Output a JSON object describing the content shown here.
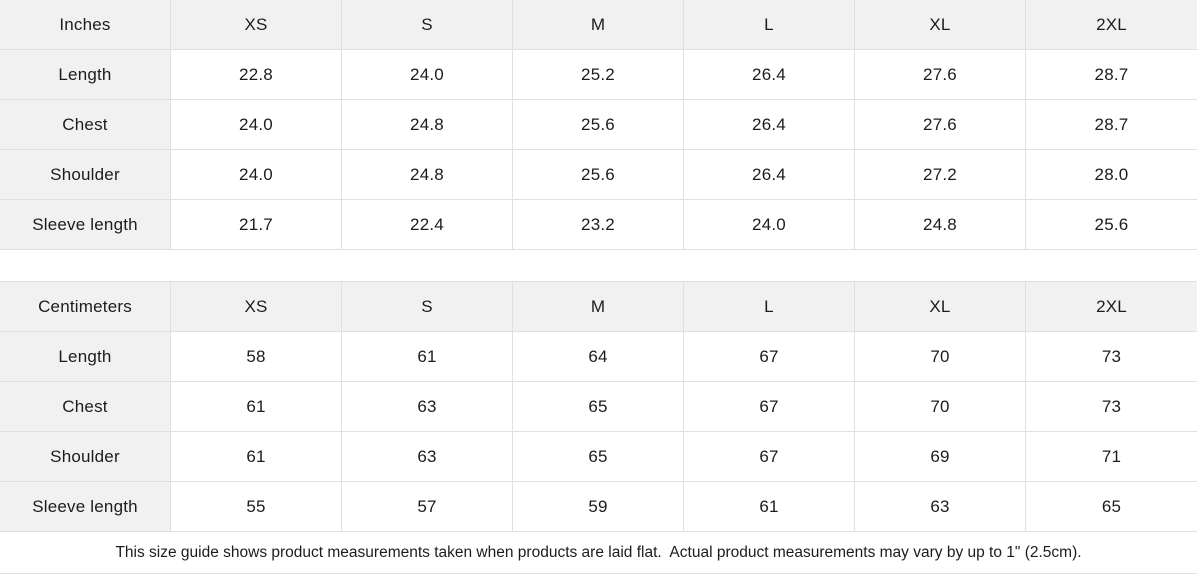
{
  "size_guide": {
    "colors": {
      "header_bg": "#f1f1f1",
      "border": "#e0e0e0",
      "text": "#1c1c1c"
    },
    "tables": [
      {
        "unit_label": "Inches",
        "sizes": [
          "XS",
          "S",
          "M",
          "L",
          "XL",
          "2XL"
        ],
        "rows": [
          {
            "label": "Length",
            "values": [
              "22.8",
              "24.0",
              "25.2",
              "26.4",
              "27.6",
              "28.7"
            ]
          },
          {
            "label": "Chest",
            "values": [
              "24.0",
              "24.8",
              "25.6",
              "26.4",
              "27.6",
              "28.7"
            ]
          },
          {
            "label": "Shoulder",
            "values": [
              "24.0",
              "24.8",
              "25.6",
              "26.4",
              "27.2",
              "28.0"
            ]
          },
          {
            "label": "Sleeve length",
            "values": [
              "21.7",
              "22.4",
              "23.2",
              "24.0",
              "24.8",
              "25.6"
            ]
          }
        ]
      },
      {
        "unit_label": "Centimeters",
        "sizes": [
          "XS",
          "S",
          "M",
          "L",
          "XL",
          "2XL"
        ],
        "rows": [
          {
            "label": "Length",
            "values": [
              "58",
              "61",
              "64",
              "67",
              "70",
              "73"
            ]
          },
          {
            "label": "Chest",
            "values": [
              "61",
              "63",
              "65",
              "67",
              "70",
              "73"
            ]
          },
          {
            "label": "Shoulder",
            "values": [
              "61",
              "63",
              "65",
              "67",
              "69",
              "71"
            ]
          },
          {
            "label": "Sleeve length",
            "values": [
              "55",
              "57",
              "59",
              "61",
              "63",
              "65"
            ]
          }
        ]
      }
    ],
    "footnote": "This size guide shows product measurements taken when products are laid flat.  Actual product measurements may vary by up to 1\" (2.5cm)."
  }
}
